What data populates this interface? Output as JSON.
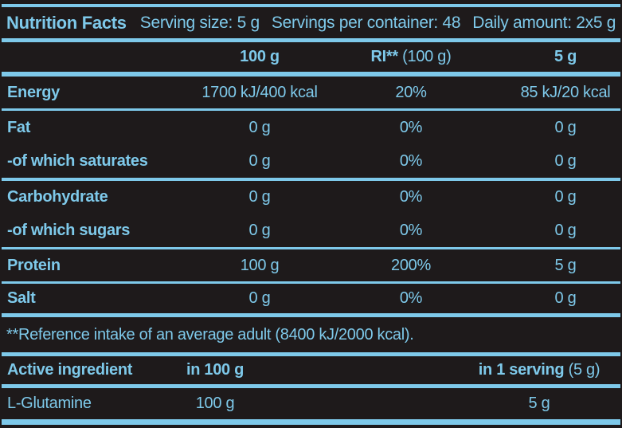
{
  "colors": {
    "background": "#1e1a1b",
    "text": "#7ec9ea",
    "rule": "#7ec9ea"
  },
  "header": {
    "title": "Nutrition Facts",
    "serving_size": "Serving size: 5 g",
    "servings_per_container": "Servings per container: 48",
    "daily_amount": "Daily amount: 2x5 g"
  },
  "nutrition_table": {
    "columns": {
      "col_100g": "100 g",
      "col_ri_bold": "RI**",
      "col_ri_rest": "(100 g)",
      "col_5g": "5 g"
    },
    "rows": [
      {
        "label": "Energy",
        "per_100g": "1700 kJ/400 kcal",
        "ri": "20%",
        "per_5g": "85 kJ/20 kcal"
      },
      {
        "label": "Fat",
        "per_100g": "0 g",
        "ri": "0%",
        "per_5g": "0 g"
      },
      {
        "label": "-of which saturates",
        "per_100g": "0 g",
        "ri": "0%",
        "per_5g": "0 g"
      },
      {
        "label": "Carbohydrate",
        "per_100g": "0 g",
        "ri": "0%",
        "per_5g": "0 g"
      },
      {
        "label": "-of which sugars",
        "per_100g": "0 g",
        "ri": "0%",
        "per_5g": "0 g"
      },
      {
        "label": "Protein",
        "per_100g": "100 g",
        "ri": "200%",
        "per_5g": "5 g"
      },
      {
        "label": "Salt",
        "per_100g": "0 g",
        "ri": "0%",
        "per_5g": "0 g"
      }
    ]
  },
  "footnote": "**Reference intake of an average adult (8400 kJ/2000 kcal).",
  "active_ingredient_table": {
    "columns": {
      "label": "Active ingredient",
      "in_100g": "in 100 g",
      "in_serving_bold": "in 1 serving",
      "in_serving_rest": "(5 g)"
    },
    "rows": [
      {
        "label": "L-Glutamine",
        "in_100g": "100 g",
        "in_serving": "5 g"
      }
    ]
  }
}
